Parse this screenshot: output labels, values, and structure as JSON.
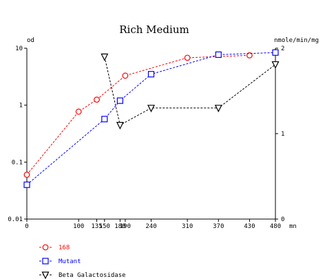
{
  "chart_data": {
    "type": "line",
    "title": "Rich Medium",
    "ylabel_left": "od",
    "ylabel_right": "nmole/min/mg",
    "xunit": "mn",
    "y_scale_left": "log",
    "ylim_left": [
      0.01,
      10
    ],
    "yticks_left": [
      "10",
      "1",
      "0.1",
      "0.01"
    ],
    "ylim_right": [
      0,
      2
    ],
    "yticks_right": [
      "2",
      "1",
      "0"
    ],
    "xlim": [
      0,
      480
    ],
    "xticks": [
      0,
      100,
      135,
      150,
      180,
      190,
      240,
      310,
      370,
      430,
      480
    ],
    "xtick_labels": [
      "0",
      "100",
      "135",
      "150",
      "180",
      "190",
      "240",
      "310",
      "370",
      "430",
      "480"
    ],
    "grid": false,
    "legend_position": "bottom-left",
    "series": [
      {
        "name": "168",
        "axis": "left",
        "color": "#ff0000",
        "marker": "circle",
        "x": [
          0,
          100,
          135,
          190,
          310,
          430
        ],
        "y": [
          0.06,
          0.77,
          1.25,
          3.3,
          6.8,
          7.5
        ]
      },
      {
        "name": "Mutant",
        "axis": "left",
        "color": "#0000ff",
        "marker": "square",
        "x": [
          0,
          150,
          180,
          240,
          370,
          480
        ],
        "y": [
          0.04,
          0.57,
          1.2,
          3.5,
          7.7,
          8.4
        ]
      },
      {
        "name": "Beta Galactosidase",
        "axis": "right",
        "color": "#000000",
        "marker": "triangle-down",
        "x": [
          150,
          180,
          240,
          370,
          480
        ],
        "y": [
          1.9,
          1.1,
          1.3,
          1.3,
          1.81
        ]
      }
    ]
  }
}
